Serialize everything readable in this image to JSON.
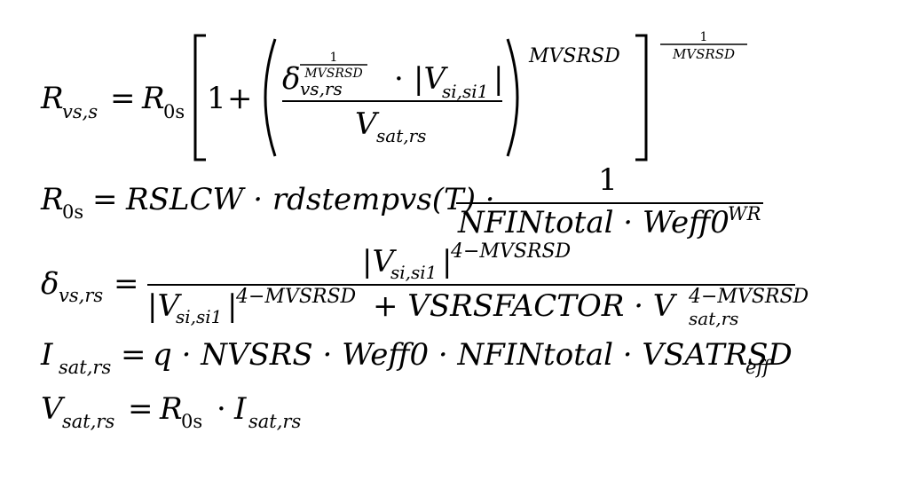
{
  "equations": [
    {
      "id": "eq1",
      "lhs": "R",
      "lhs_sub": "vs,s",
      "equals": "=",
      "r0": "R",
      "r0_sub": "0s",
      "one": "1",
      "plus": "+",
      "delta": "δ",
      "delta_sub": "vs,rs",
      "delta_exp_num": "1",
      "delta_exp_den": "MVSRSD",
      "dot": "·",
      "abs_v": "|V",
      "abs_v_sub": "si,si1",
      "abs_close": "|",
      "den_v": "V",
      "den_v_sub": "sat,rs",
      "paren_exp": "MVSRSD",
      "bracket_exp_num": "1",
      "bracket_exp_den": "MVSRSD"
    },
    {
      "id": "eq2",
      "lhs": "R",
      "lhs_sub": "0s",
      "equals": "=",
      "rhs": "RSLCW · rdstempvs(T) ·",
      "frac_num": "1",
      "frac_den": "NFINtotal · Weff0",
      "frac_den_sup": "WR"
    },
    {
      "id": "eq3",
      "lhs": "δ",
      "lhs_sub": "vs,rs",
      "equals": "=",
      "num_v": "|V",
      "num_v_sub": "si,si1",
      "num_v_close": "|",
      "num_sup": "4−MVSRSD",
      "den_v": "|V",
      "den_v_sub": "si,si1",
      "den_v_close": "|",
      "den_sup": "4−MVSRSD",
      "den_plus": "+ VSRSFACTOR · V",
      "den_v2_sub": "sat,rs",
      "den_v2_sup": "4−MVSRSD"
    },
    {
      "id": "eq4",
      "lhs": "I",
      "lhs_sub": "sat,rs",
      "equals": "=",
      "rhs": "q · NVSRS · Weff0 · NFINtotal · VSATRSD",
      "rhs_sub": "eff"
    },
    {
      "id": "eq5",
      "lhs": "V",
      "lhs_sub": "sat,rs",
      "equals": "=",
      "r0": "R",
      "r0_sub": "0s",
      "dot": "·",
      "i": "I",
      "i_sub": "sat,rs"
    }
  ]
}
